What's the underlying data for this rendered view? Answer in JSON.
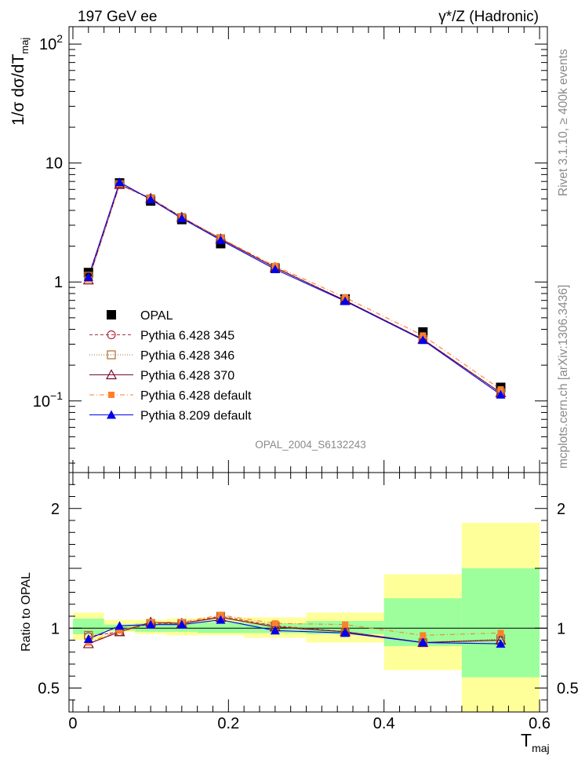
{
  "header": {
    "left": "197 GeV ee",
    "right": "γ*/Z (Hadronic)"
  },
  "side": {
    "top": "Rivet 3.1.10, ≥ 400k events",
    "bottom": "mcplots.cern.ch [arXiv:1306.3436]"
  },
  "analysis_label": "OPAL_2004_S6132243",
  "colors": {
    "opal": "#000000",
    "p345": "#b03040",
    "p346": "#b06a2a",
    "p370": "#7a0a2a",
    "pdef": "#ff7f2a",
    "p8": "#0000ee",
    "band_inner": "#9cff9c",
    "band_outer": "#ffff99"
  },
  "chart_data": [
    {
      "type": "line",
      "title": "",
      "ylabel": "1/σ dσ/dT_maj",
      "xlabel": "T_maj",
      "yscale": "log",
      "ylim": [
        0.025,
        140
      ],
      "xlim": [
        -0.005,
        0.61
      ],
      "yticks": [
        {
          "v": 0.1,
          "b": "10",
          "e": "−1"
        },
        {
          "v": 1,
          "b": "1",
          "e": ""
        },
        {
          "v": 10,
          "b": "10",
          "e": ""
        },
        {
          "v": 100,
          "b": "10",
          "e": "2"
        }
      ],
      "x": [
        0.02,
        0.06,
        0.1,
        0.14,
        0.19,
        0.26,
        0.35,
        0.45,
        0.55
      ],
      "bins": [
        0,
        0.04,
        0.08,
        0.12,
        0.16,
        0.22,
        0.3,
        0.4,
        0.5,
        0.6
      ],
      "series": [
        {
          "name": "OPAL",
          "key": "opal",
          "marker": "square-filled",
          "values": [
            1.2,
            6.8,
            4.8,
            3.35,
            2.1,
            1.3,
            0.72,
            0.38,
            0.13
          ]
        },
        {
          "name": "Pythia 6.428 345",
          "key": "p345",
          "marker": "circle-open",
          "dash": "4,3",
          "values": [
            1.12,
            6.6,
            5.0,
            3.48,
            2.31,
            1.33,
            0.7,
            0.33,
            0.117
          ]
        },
        {
          "name": "Pythia 6.428 346",
          "key": "p346",
          "marker": "square-open",
          "dash": "1,2",
          "values": [
            1.12,
            6.6,
            5.0,
            3.48,
            2.31,
            1.33,
            0.7,
            0.33,
            0.117
          ]
        },
        {
          "name": "Pythia 6.428 370",
          "key": "p370",
          "marker": "triangle-open",
          "dash": "",
          "values": [
            1.04,
            6.6,
            5.05,
            3.5,
            2.3,
            1.32,
            0.7,
            0.33,
            0.117
          ]
        },
        {
          "name": "Pythia 6.428 default",
          "key": "pdef",
          "marker": "square-filled-small",
          "dash": "6,3,1,3",
          "values": [
            1.05,
            6.65,
            5.05,
            3.5,
            2.33,
            1.36,
            0.74,
            0.355,
            0.125
          ]
        },
        {
          "name": "Pythia 8.209 default",
          "key": "p8",
          "marker": "triangle-filled",
          "dash": "",
          "values": [
            1.1,
            6.9,
            4.95,
            3.43,
            2.25,
            1.28,
            0.69,
            0.325,
            0.113
          ]
        }
      ]
    },
    {
      "type": "line",
      "ylabel": "Ratio to OPAL",
      "xlabel": "T_maj",
      "ylim": [
        0.3,
        2.3
      ],
      "xlim": [
        -0.005,
        0.61
      ],
      "yticks": [
        0.5,
        1,
        2
      ],
      "xticks": [
        0,
        0.2,
        0.4,
        0.6
      ],
      "bands": {
        "bins": [
          0,
          0.04,
          0.08,
          0.12,
          0.16,
          0.22,
          0.3,
          0.4,
          0.5,
          0.6
        ],
        "inner": [
          [
            0.95,
            1.08
          ],
          [
            0.98,
            1.03
          ],
          [
            0.97,
            1.04
          ],
          [
            0.97,
            1.04
          ],
          [
            0.96,
            1.05
          ],
          [
            0.96,
            1.04
          ],
          [
            0.95,
            1.06
          ],
          [
            0.85,
            1.25
          ],
          [
            0.59,
            1.5
          ]
        ],
        "outer": [
          [
            0.9,
            1.13
          ],
          [
            0.97,
            1.07
          ],
          [
            0.95,
            1.07
          ],
          [
            0.94,
            1.08
          ],
          [
            0.94,
            1.09
          ],
          [
            0.92,
            1.09
          ],
          [
            0.88,
            1.13
          ],
          [
            0.65,
            1.45
          ],
          [
            0.3,
            1.88
          ]
        ]
      },
      "series": [
        {
          "key": "p345",
          "marker": "circle-open",
          "dash": "4,3",
          "values": [
            0.93,
            0.97,
            1.04,
            1.04,
            1.1,
            1.02,
            0.97,
            0.88,
            0.9
          ]
        },
        {
          "key": "p346",
          "marker": "square-open",
          "dash": "1,2",
          "values": [
            0.94,
            0.97,
            1.04,
            1.04,
            1.1,
            1.02,
            0.97,
            0.88,
            0.91
          ]
        },
        {
          "key": "p370",
          "marker": "triangle-open",
          "dash": "",
          "values": [
            0.87,
            0.97,
            1.05,
            1.04,
            1.09,
            1.01,
            0.97,
            0.88,
            0.9
          ]
        },
        {
          "key": "pdef",
          "marker": "square-filled-small",
          "dash": "6,3,1,3",
          "values": [
            0.88,
            0.98,
            1.05,
            1.05,
            1.11,
            1.04,
            1.03,
            0.94,
            0.96
          ]
        },
        {
          "key": "p8",
          "marker": "triangle-filled",
          "dash": "",
          "values": [
            0.91,
            1.02,
            1.03,
            1.03,
            1.07,
            0.98,
            0.96,
            0.88,
            0.87
          ]
        }
      ]
    }
  ]
}
